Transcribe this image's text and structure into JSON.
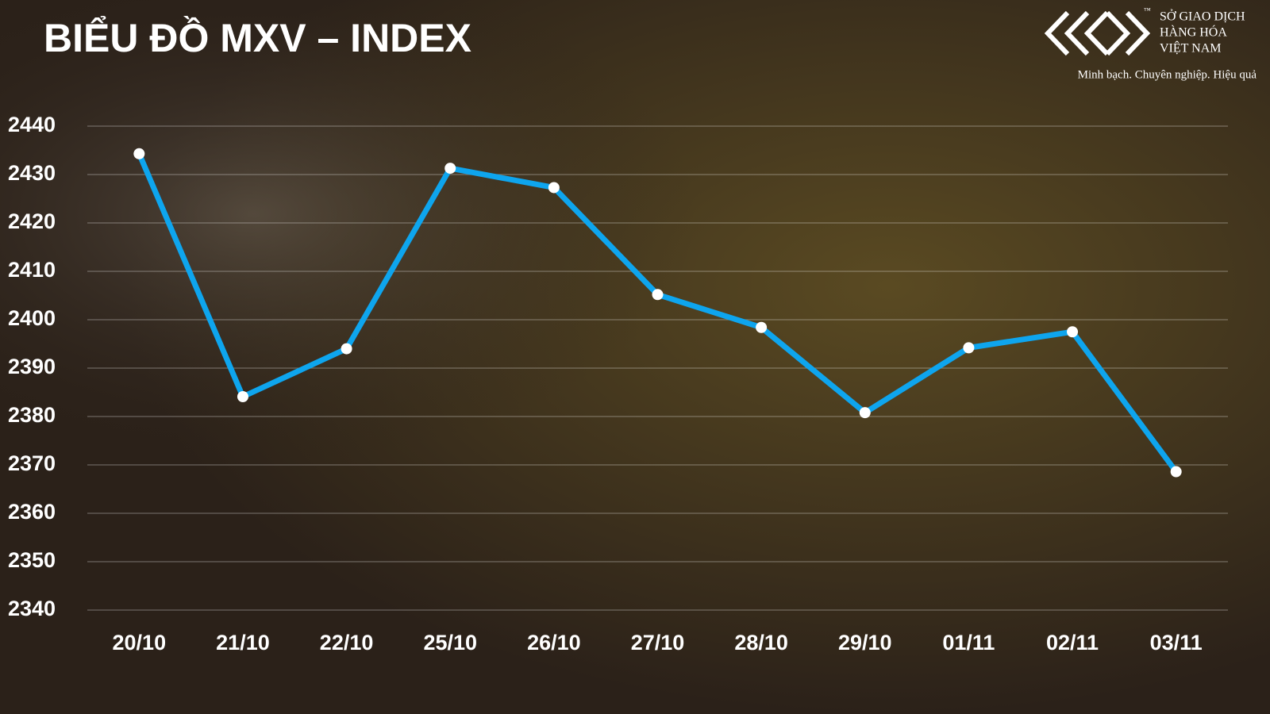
{
  "chart_data": {
    "type": "line",
    "title": "BIỂU ĐỒ MXV – INDEX",
    "categories": [
      "20/10",
      "21/10",
      "22/10",
      "25/10",
      "26/10",
      "27/10",
      "28/10",
      "29/10",
      "01/11",
      "02/11",
      "03/11"
    ],
    "series": [
      {
        "name": "MXV-Index",
        "color": "#0ea5ee",
        "values": [
          2434.3,
          2384.1,
          2394.0,
          2431.3,
          2427.3,
          2405.2,
          2398.4,
          2380.8,
          2394.2,
          2397.5,
          2368.6
        ]
      }
    ],
    "ylim": [
      2340,
      2440
    ],
    "yticks": [
      2340,
      2350,
      2360,
      2370,
      2380,
      2390,
      2400,
      2410,
      2420,
      2430,
      2440
    ],
    "grid": true
  },
  "brand": {
    "name_lines": [
      "SỞ GIAO DỊCH",
      "HÀNG HÓA",
      "VIỆT NAM"
    ],
    "trademark": "™",
    "slogan": "Minh bạch. Chuyên nghiệp. Hiệu quả"
  }
}
